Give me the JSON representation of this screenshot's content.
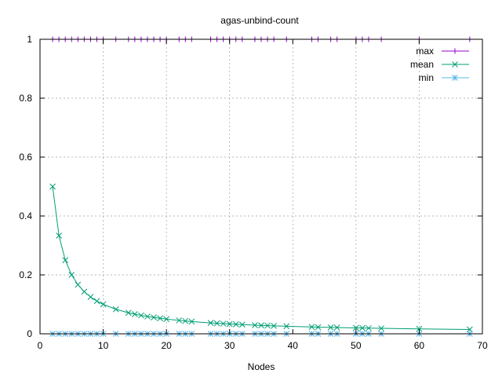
{
  "chart_data": {
    "type": "line",
    "title": "agas-unbind-count",
    "xlabel": "Nodes",
    "ylabel": "",
    "xlim": [
      0,
      70
    ],
    "ylim": [
      0,
      1
    ],
    "x_ticks": [
      "0",
      "10",
      "20",
      "30",
      "40",
      "50",
      "60",
      "70"
    ],
    "y_ticks": [
      "0",
      "0.2",
      "0.4",
      "0.6",
      "0.8",
      "1"
    ],
    "grid": true,
    "legend_position": "top-right",
    "x": [
      2,
      3,
      4,
      5,
      6,
      7,
      8,
      9,
      10,
      12,
      14,
      15,
      16,
      17,
      18,
      19,
      20,
      22,
      23,
      24,
      27,
      28,
      29,
      30,
      31,
      32,
      34,
      35,
      36,
      37,
      39,
      43,
      44,
      46,
      47,
      50,
      51,
      52,
      54,
      60,
      68
    ],
    "series": [
      {
        "name": "max",
        "color": "#9400d3",
        "marker": "plus",
        "values": [
          1,
          1,
          1,
          1,
          1,
          1,
          1,
          1,
          1,
          1,
          1,
          1,
          1,
          1,
          1,
          1,
          1,
          1,
          1,
          1,
          1,
          1,
          1,
          1,
          1,
          1,
          1,
          1,
          1,
          1,
          1,
          1,
          1,
          1,
          1,
          1,
          1,
          1,
          1,
          1,
          1
        ]
      },
      {
        "name": "mean",
        "color": "#009e73",
        "marker": "cross",
        "values": [
          0.5,
          0.3333,
          0.25,
          0.2,
          0.1667,
          0.1429,
          0.125,
          0.1111,
          0.1,
          0.0833,
          0.0714,
          0.0667,
          0.0625,
          0.0588,
          0.0556,
          0.0526,
          0.05,
          0.0455,
          0.0435,
          0.0417,
          0.037,
          0.0357,
          0.0345,
          0.0333,
          0.0323,
          0.0313,
          0.0294,
          0.0286,
          0.0278,
          0.027,
          0.0256,
          0.0233,
          0.0227,
          0.0217,
          0.0213,
          0.02,
          0.0196,
          0.0192,
          0.0185,
          0.0167,
          0.0147
        ]
      },
      {
        "name": "min",
        "color": "#56b4e9",
        "marker": "star",
        "values": [
          0,
          0,
          0,
          0,
          0,
          0,
          0,
          0,
          0,
          0,
          0,
          0,
          0,
          0,
          0,
          0,
          0,
          0,
          0,
          0,
          0,
          0,
          0,
          0,
          0,
          0,
          0,
          0,
          0,
          0,
          0,
          0,
          0,
          0,
          0,
          0,
          0,
          0,
          0,
          0,
          0
        ]
      }
    ]
  }
}
